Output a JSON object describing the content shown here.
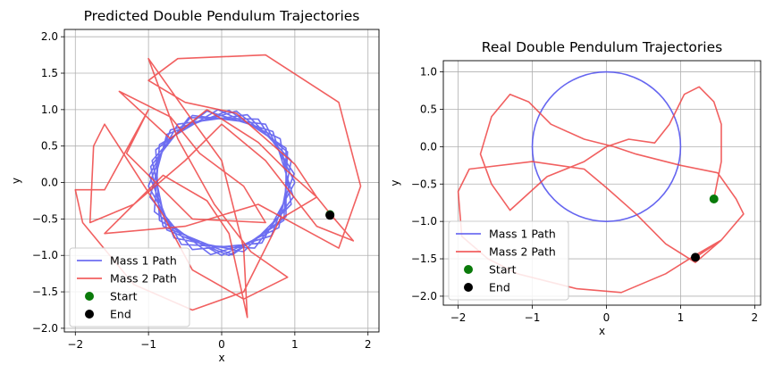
{
  "chart_data": [
    {
      "type": "line",
      "title": "Predicted Double Pendulum Trajectories",
      "xlabel": "x",
      "ylabel": "y",
      "xlim": [
        -2.15,
        2.15
      ],
      "ylim": [
        -2.05,
        2.1
      ],
      "xticks": [
        -2,
        -1,
        0,
        1,
        2
      ],
      "yticks": [
        -2.0,
        -1.5,
        -1.0,
        -0.5,
        0.0,
        0.5,
        1.0,
        1.5,
        2.0
      ],
      "ytick_labels": [
        "−2.0",
        "−1.5",
        "−1.0",
        "−0.5",
        "0.0",
        "0.5",
        "1.0",
        "1.5",
        "2.0"
      ],
      "xtick_labels": [
        "−2",
        "−1",
        "0",
        "1",
        "2"
      ],
      "grid": true,
      "legend_position": "lower-left",
      "series": [
        {
          "name": "Mass 1 Path",
          "color": "#5555ee",
          "points": [
            [
              1.0,
              0.0
            ],
            [
              0.6,
              0.8
            ],
            [
              -0.4,
              0.92
            ],
            [
              -0.95,
              0.3
            ],
            [
              -0.75,
              -0.65
            ],
            [
              0.1,
              -1.0
            ],
            [
              0.85,
              -0.52
            ],
            [
              0.9,
              0.42
            ],
            [
              0.2,
              0.98
            ],
            [
              -0.7,
              0.72
            ],
            [
              -1.0,
              -0.05
            ],
            [
              -0.55,
              -0.85
            ],
            [
              0.45,
              -0.9
            ],
            [
              0.98,
              -0.2
            ],
            [
              0.7,
              0.7
            ],
            [
              -0.2,
              0.98
            ],
            [
              -0.9,
              0.45
            ],
            [
              -0.85,
              -0.52
            ],
            [
              0.0,
              -1.0
            ],
            [
              0.78,
              -0.62
            ],
            [
              0.95,
              0.3
            ],
            [
              0.35,
              0.93
            ],
            [
              -0.6,
              0.8
            ],
            [
              -0.99,
              0.1
            ],
            [
              -0.65,
              -0.76
            ],
            [
              0.3,
              -0.95
            ],
            [
              0.95,
              -0.3
            ],
            [
              0.8,
              0.6
            ],
            [
              -0.05,
              1.0
            ],
            [
              -0.85,
              0.52
            ],
            [
              -0.92,
              -0.4
            ],
            [
              -0.15,
              -0.99
            ],
            [
              0.68,
              -0.73
            ],
            [
              0.99,
              0.12
            ],
            [
              0.5,
              0.87
            ],
            [
              -0.45,
              0.89
            ],
            [
              -0.97,
              0.22
            ],
            [
              -0.8,
              -0.6
            ],
            [
              0.15,
              -0.99
            ],
            [
              0.88,
              -0.47
            ],
            [
              0.88,
              0.47
            ],
            [
              0.1,
              0.99
            ],
            [
              -0.75,
              0.66
            ],
            [
              -0.98,
              -0.2
            ],
            [
              -0.4,
              -0.92
            ],
            [
              0.55,
              -0.83
            ],
            [
              1.0,
              0.0
            ]
          ]
        },
        {
          "name": "Mass 2 Path",
          "color": "#ee4444",
          "points": [
            [
              1.5,
              -0.45
            ],
            [
              1.3,
              -0.2
            ],
            [
              0.85,
              0.2
            ],
            [
              0.5,
              0.55
            ],
            [
              -0.2,
              1.0
            ],
            [
              -0.7,
              0.6
            ],
            [
              -1.4,
              1.25
            ],
            [
              -0.7,
              0.9
            ],
            [
              -0.3,
              0.4
            ],
            [
              0.3,
              -0.05
            ],
            [
              0.6,
              -0.55
            ],
            [
              -0.4,
              -0.5
            ],
            [
              -1.3,
              0.4
            ],
            [
              -1.0,
              1.0
            ],
            [
              -1.6,
              -0.1
            ],
            [
              -2.0,
              -0.1
            ],
            [
              -1.9,
              -0.55
            ],
            [
              -1.2,
              -1.4
            ],
            [
              -0.4,
              -1.75
            ],
            [
              0.3,
              -1.5
            ],
            [
              0.8,
              -0.5
            ],
            [
              1.3,
              -0.2
            ],
            [
              1.0,
              0.25
            ],
            [
              0.2,
              0.95
            ],
            [
              -0.5,
              1.1
            ],
            [
              -1.0,
              1.4
            ],
            [
              -0.6,
              1.7
            ],
            [
              0.6,
              1.75
            ],
            [
              1.6,
              1.1
            ],
            [
              1.9,
              -0.05
            ],
            [
              1.6,
              -0.9
            ],
            [
              0.5,
              -0.3
            ],
            [
              -0.5,
              -0.6
            ],
            [
              -1.6,
              -0.7
            ],
            [
              -1.2,
              -0.3
            ],
            [
              -0.8,
              0.1
            ],
            [
              -0.2,
              -0.25
            ],
            [
              0.1,
              -0.7
            ],
            [
              0.35,
              -1.85
            ],
            [
              0.3,
              -0.9
            ],
            [
              0.0,
              0.3
            ],
            [
              -0.4,
              0.85
            ],
            [
              -1.0,
              1.7
            ],
            [
              -0.6,
              0.6
            ],
            [
              -0.1,
              -0.3
            ],
            [
              0.4,
              -0.95
            ],
            [
              0.9,
              -1.3
            ],
            [
              0.3,
              -1.6
            ],
            [
              -0.4,
              -1.2
            ],
            [
              -0.8,
              -0.45
            ],
            [
              -1.6,
              0.8
            ],
            [
              -1.75,
              0.5
            ],
            [
              -1.8,
              -0.55
            ],
            [
              -1.2,
              -0.3
            ],
            [
              -0.5,
              0.3
            ],
            [
              0.0,
              0.8
            ],
            [
              0.6,
              0.3
            ],
            [
              1.3,
              -0.6
            ],
            [
              1.8,
              -0.8
            ],
            [
              1.5,
              -0.45
            ]
          ]
        }
      ],
      "start": {
        "label": "Start",
        "x": 1.48,
        "y": -0.44,
        "color": "#0a7a0a"
      },
      "end": {
        "label": "End",
        "x": 1.48,
        "y": -0.45,
        "color": "#000000"
      }
    },
    {
      "type": "line",
      "title": "Real Double Pendulum Trajectories",
      "xlabel": "x",
      "ylabel": "y",
      "xlim": [
        -2.2,
        2.08
      ],
      "ylim": [
        -2.12,
        1.15
      ],
      "xticks": [
        -2,
        -1,
        0,
        1,
        2
      ],
      "yticks": [
        -2.0,
        -1.5,
        -1.0,
        -0.5,
        0.0,
        0.5,
        1.0
      ],
      "ytick_labels": [
        "−2.0",
        "−1.5",
        "−1.0",
        "−0.5",
        "0.0",
        "0.5",
        "1.0"
      ],
      "xtick_labels": [
        "−2",
        "−1",
        "0",
        "1",
        "2"
      ],
      "grid": true,
      "legend_position": "lower-left",
      "series": [
        {
          "name": "Mass 1 Path",
          "color": "#5555ee",
          "circle": {
            "cx": 0.0,
            "cy": 0.0,
            "r": 1.0
          }
        },
        {
          "name": "Mass 2 Path",
          "color": "#ee4444",
          "points": [
            [
              1.45,
              -0.7
            ],
            [
              1.55,
              -0.2
            ],
            [
              1.55,
              0.3
            ],
            [
              1.45,
              0.6
            ],
            [
              1.25,
              0.8
            ],
            [
              1.05,
              0.7
            ],
            [
              0.85,
              0.3
            ],
            [
              0.65,
              0.05
            ],
            [
              0.3,
              0.1
            ],
            [
              0.0,
              0.0
            ],
            [
              -0.3,
              -0.2
            ],
            [
              -0.8,
              -0.4
            ],
            [
              -1.3,
              -0.85
            ],
            [
              -1.55,
              -0.5
            ],
            [
              -1.7,
              -0.1
            ],
            [
              -1.55,
              0.4
            ],
            [
              -1.3,
              0.7
            ],
            [
              -1.05,
              0.6
            ],
            [
              -0.75,
              0.3
            ],
            [
              -0.3,
              0.1
            ],
            [
              0.1,
              0.0
            ],
            [
              0.4,
              -0.1
            ],
            [
              1.0,
              -0.25
            ],
            [
              1.5,
              -0.35
            ],
            [
              1.75,
              -0.7
            ],
            [
              1.85,
              -0.9
            ],
            [
              1.55,
              -1.25
            ],
            [
              1.2,
              -1.45
            ],
            [
              0.8,
              -1.7
            ],
            [
              0.2,
              -1.95
            ],
            [
              -0.4,
              -1.9
            ],
            [
              -1.2,
              -1.7
            ],
            [
              -1.6,
              -1.5
            ],
            [
              -1.95,
              -1.2
            ],
            [
              -2.0,
              -0.6
            ],
            [
              -1.85,
              -0.3
            ],
            [
              -1.0,
              -0.2
            ],
            [
              -0.3,
              -0.3
            ],
            [
              0.0,
              -0.55
            ],
            [
              0.4,
              -0.9
            ],
            [
              0.8,
              -1.3
            ],
            [
              1.2,
              -1.55
            ],
            [
              1.55,
              -1.25
            ],
            [
              1.2,
              -1.48
            ]
          ]
        }
      ],
      "start": {
        "label": "Start",
        "x": 1.45,
        "y": -0.7,
        "color": "#0a7a0a"
      },
      "end": {
        "label": "End",
        "x": 1.2,
        "y": -1.48,
        "color": "#000000"
      }
    }
  ]
}
